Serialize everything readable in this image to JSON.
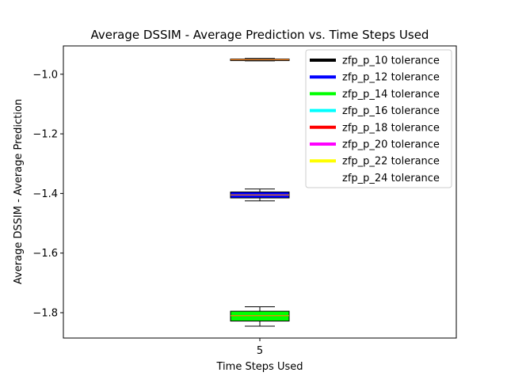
{
  "chart_data": {
    "type": "box",
    "title": "Average DSSIM - Average Prediction vs. Time Steps Used",
    "xlabel": "Time Steps Used",
    "ylabel": "Average DSSIM - Average Prediction",
    "categories": [
      "5"
    ],
    "ylim": [
      -1.885,
      -0.905
    ],
    "yticks": [
      -1.0,
      -1.2,
      -1.4,
      -1.6,
      -1.8
    ],
    "ytick_labels": [
      "−1.0",
      "−1.2",
      "−1.4",
      "−1.6",
      "−1.8"
    ],
    "grid": false,
    "legend_position": "top-right",
    "series": [
      {
        "name": "zfp_p_10 tolerance",
        "color": "#000000",
        "box": null
      },
      {
        "name": "zfp_p_12 tolerance",
        "color": "#0000ff",
        "box": {
          "whisker_low": -1.425,
          "q1": -1.415,
          "median": -1.405,
          "q3": -1.395,
          "whisker_high": -1.385
        }
      },
      {
        "name": "zfp_p_14 tolerance",
        "color": "#00ff00",
        "box": {
          "whisker_low": -1.845,
          "q1": -1.828,
          "median": -1.81,
          "q3": -1.795,
          "whisker_high": -1.78
        }
      },
      {
        "name": "zfp_p_16 tolerance",
        "color": "#00ffff",
        "box": null
      },
      {
        "name": "zfp_p_18 tolerance",
        "color": "#ff0000",
        "box": null
      },
      {
        "name": "zfp_p_20 tolerance",
        "color": "#ff00ff",
        "box": null
      },
      {
        "name": "zfp_p_22 tolerance",
        "color": "#ffff00",
        "box": null
      },
      {
        "name": "zfp_p_24 tolerance",
        "color": "#ffffff",
        "box": {
          "whisker_low": -0.955,
          "q1": -0.953,
          "median": -0.951,
          "q3": -0.949,
          "whisker_high": -0.947
        }
      }
    ]
  }
}
